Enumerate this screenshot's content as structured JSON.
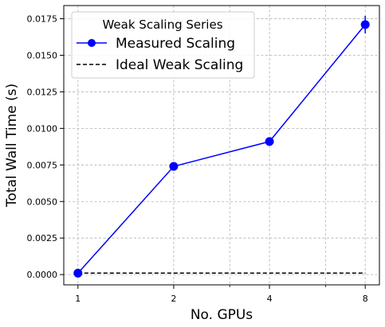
{
  "chart_data": {
    "type": "line",
    "x_scale": "log2",
    "x": [
      1,
      2,
      4,
      8
    ],
    "x_tick_labels": [
      "1",
      "2",
      "4",
      "8"
    ],
    "xlabel": "No. GPUs",
    "ylabel": "Total Wall Time (s)",
    "ylim": [
      -0.0007,
      0.0184
    ],
    "y_ticks": [
      0.0,
      0.0025,
      0.005,
      0.0075,
      0.01,
      0.0125,
      0.015,
      0.0175
    ],
    "y_tick_labels": [
      "0.0000",
      "0.0025",
      "0.0050",
      "0.0075",
      "0.0100",
      "0.0125",
      "0.0150",
      "0.0175"
    ],
    "grid": true,
    "legend": {
      "title": "Weak Scaling Series",
      "placement": "upper-left"
    },
    "series": [
      {
        "name": "Measured Scaling",
        "style": "solid-with-markers",
        "color": "#0000ff",
        "values": [
          0.0001,
          0.0074,
          0.0091,
          0.0171
        ],
        "error": [
          5e-05,
          8e-05,
          8e-05,
          0.0006
        ]
      },
      {
        "name": "Ideal Weak Scaling",
        "style": "dashed",
        "color": "#000000",
        "values": [
          0.0001,
          0.0001,
          0.0001,
          0.0001
        ]
      }
    ]
  }
}
